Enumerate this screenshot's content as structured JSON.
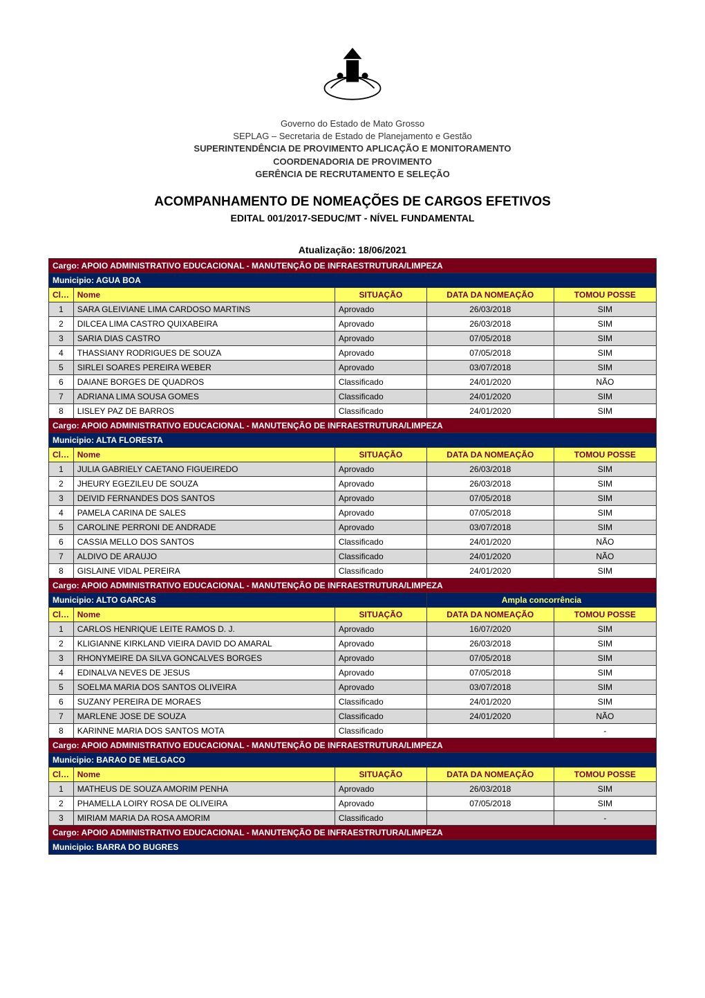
{
  "logo": {
    "alt": "state-coat-of-arms"
  },
  "header": {
    "line1": "Governo do Estado de Mato Grosso",
    "line2": "SEPLAG – Secretaria de Estado de Planejamento e Gestão",
    "line3": "SUPERINTENDÊNCIA DE PROVIMENTO APLICAÇÃO E MONITORAMENTO",
    "line4": "COORDENADORIA DE PROVIMENTO",
    "line5": "GERÊNCIA DE RECRUTAMENTO E SELEÇÃO"
  },
  "title": "ACOMPANHAMENTO DE NOMEAÇÕES DE CARGOS EFETIVOS",
  "subtitle": "EDITAL 001/2017-SEDUC/MT - NÍVEL FUNDAMENTAL",
  "update_label": "Atualização: 18/06/2021",
  "column_headers": {
    "class": "Class.",
    "nome": "Nome",
    "situacao": "SITUAÇÃO",
    "data": "DATA DA NOMEAÇÃO",
    "posse": "TOMOU POSSE"
  },
  "styles": {
    "cargo_bg": "#7a0019",
    "cargo_fg": "#ffffff",
    "muni_bg": "#002060",
    "muni_fg": "#ffffff",
    "header_bg": "#ffff66",
    "header_fg": "#7a0019",
    "row_even_bg": "#ffffff",
    "row_odd_bg": "#d9d9d9",
    "subheader_fg": "#7a0019",
    "border_color": "#333333",
    "text_color": "#000000",
    "font_size": 12
  },
  "sections": [
    {
      "cargo": "Cargo: APOIO ADMINISTRATIVO EDUCACIONAL - MANUTENÇÃO DE INFRAESTRUTURA/LIMPEZA",
      "municipio": "Municipio: AGUA BOA",
      "extra_header": null,
      "rows": [
        {
          "n": "1",
          "nome": "SARA GLEIVIANE LIMA CARDOSO MARTINS",
          "sit": "Aprovado",
          "data": "26/03/2018",
          "posse": "SIM"
        },
        {
          "n": "2",
          "nome": "DILCEA LIMA CASTRO QUIXABEIRA",
          "sit": "Aprovado",
          "data": "26/03/2018",
          "posse": "SIM"
        },
        {
          "n": "3",
          "nome": "SARIA DIAS CASTRO",
          "sit": "Aprovado",
          "data": "07/05/2018",
          "posse": "SIM"
        },
        {
          "n": "4",
          "nome": "THASSIANY RODRIGUES DE SOUZA",
          "sit": "Aprovado",
          "data": "07/05/2018",
          "posse": "SIM"
        },
        {
          "n": "5",
          "nome": "SIRLEI SOARES PEREIRA WEBER",
          "sit": "Aprovado",
          "data": "03/07/2018",
          "posse": "SIM"
        },
        {
          "n": "6",
          "nome": "DAIANE BORGES DE QUADROS",
          "sit": "Classificado",
          "data": "24/01/2020",
          "posse": "NÃO"
        },
        {
          "n": "7",
          "nome": "ADRIANA LIMA SOUSA GOMES",
          "sit": "Classificado",
          "data": "24/01/2020",
          "posse": "SIM"
        },
        {
          "n": "8",
          "nome": "LISLEY PAZ DE BARROS",
          "sit": "Classificado",
          "data": "24/01/2020",
          "posse": "SIM"
        }
      ]
    },
    {
      "cargo": "Cargo: APOIO ADMINISTRATIVO EDUCACIONAL - MANUTENÇÃO DE INFRAESTRUTURA/LIMPEZA",
      "municipio": "Municipio: ALTA FLORESTA",
      "extra_header": null,
      "rows": [
        {
          "n": "1",
          "nome": "JULIA GABRIELY CAETANO FIGUEIREDO",
          "sit": "Aprovado",
          "data": "26/03/2018",
          "posse": "SIM"
        },
        {
          "n": "2",
          "nome": "JHEURY EGEZILEU DE SOUZA",
          "sit": "Aprovado",
          "data": "26/03/2018",
          "posse": "SIM"
        },
        {
          "n": "3",
          "nome": "DEIVID FERNANDES DOS SANTOS",
          "sit": "Aprovado",
          "data": "07/05/2018",
          "posse": "SIM"
        },
        {
          "n": "4",
          "nome": "PAMELA CARINA DE SALES",
          "sit": "Aprovado",
          "data": "07/05/2018",
          "posse": "SIM"
        },
        {
          "n": "5",
          "nome": "CAROLINE PERRONI DE ANDRADE",
          "sit": "Aprovado",
          "data": "03/07/2018",
          "posse": "SIM"
        },
        {
          "n": "6",
          "nome": "CASSIA MELLO DOS SANTOS",
          "sit": "Classificado",
          "data": "24/01/2020",
          "posse": "NÃO"
        },
        {
          "n": "7",
          "nome": "ALDIVO DE ARAUJO",
          "sit": "Classificado",
          "data": "24/01/2020",
          "posse": "NÃO"
        },
        {
          "n": "8",
          "nome": "GISLAINE VIDAL PEREIRA",
          "sit": "Classificado",
          "data": "24/01/2020",
          "posse": "SIM"
        }
      ]
    },
    {
      "cargo": "Cargo: APOIO ADMINISTRATIVO EDUCACIONAL - MANUTENÇÃO DE INFRAESTRUTURA/LIMPEZA",
      "municipio": "Municipio:  ALTO GARCAS",
      "extra_header": "Ampla concorrência",
      "rows": [
        {
          "n": "1",
          "nome": "CARLOS HENRIQUE LEITE RAMOS D. J.",
          "sit": "Aprovado",
          "data": "16/07/2020",
          "posse": "SIM"
        },
        {
          "n": "2",
          "nome": "KLIGIANNE KIRKLAND VIEIRA DAVID DO AMARAL",
          "sit": "Aprovado",
          "data": "26/03/2018",
          "posse": "SIM"
        },
        {
          "n": "3",
          "nome": "RHONYMEIRE DA SILVA GONCALVES BORGES",
          "sit": "Aprovado",
          "data": "07/05/2018",
          "posse": "SIM"
        },
        {
          "n": "4",
          "nome": "EDINALVA NEVES DE JESUS",
          "sit": "Aprovado",
          "data": "07/05/2018",
          "posse": "SIM"
        },
        {
          "n": "5",
          "nome": "SOELMA MARIA DOS SANTOS OLIVEIRA",
          "sit": "Aprovado",
          "data": "03/07/2018",
          "posse": "SIM"
        },
        {
          "n": "6",
          "nome": "SUZANY PEREIRA DE MORAES",
          "sit": "Classificado",
          "data": "24/01/2020",
          "posse": "SIM"
        },
        {
          "n": "7",
          "nome": "MARLENE JOSE DE SOUZA",
          "sit": "Classificado",
          "data": "24/01/2020",
          "posse": "NÃO"
        },
        {
          "n": "8",
          "nome": "KARINNE MARIA DOS SANTOS MOTA",
          "sit": "Classificado",
          "data": "",
          "posse": "-"
        }
      ]
    },
    {
      "cargo": "Cargo: APOIO ADMINISTRATIVO EDUCACIONAL - MANUTENÇÃO DE INFRAESTRUTURA/LIMPEZA",
      "municipio": "Municipio: BARAO DE MELGACO",
      "extra_header": null,
      "rows": [
        {
          "n": "1",
          "nome": "MATHEUS DE SOUZA AMORIM PENHA",
          "sit": "Aprovado",
          "data": "26/03/2018",
          "posse": "SIM"
        },
        {
          "n": "2",
          "nome": "PHAMELLA LOIRY ROSA DE OLIVEIRA",
          "sit": "Aprovado",
          "data": "07/05/2018",
          "posse": "SIM"
        },
        {
          "n": "3",
          "nome": "MIRIAM MARIA DA ROSA AMORIM",
          "sit": "Classificado",
          "data": "",
          "posse": "-"
        }
      ]
    },
    {
      "cargo": "Cargo: APOIO ADMINISTRATIVO EDUCACIONAL - MANUTENÇÃO DE INFRAESTRUTURA/LIMPEZA",
      "municipio": "Municipio: BARRA DO BUGRES",
      "extra_header": null,
      "rows": []
    }
  ]
}
